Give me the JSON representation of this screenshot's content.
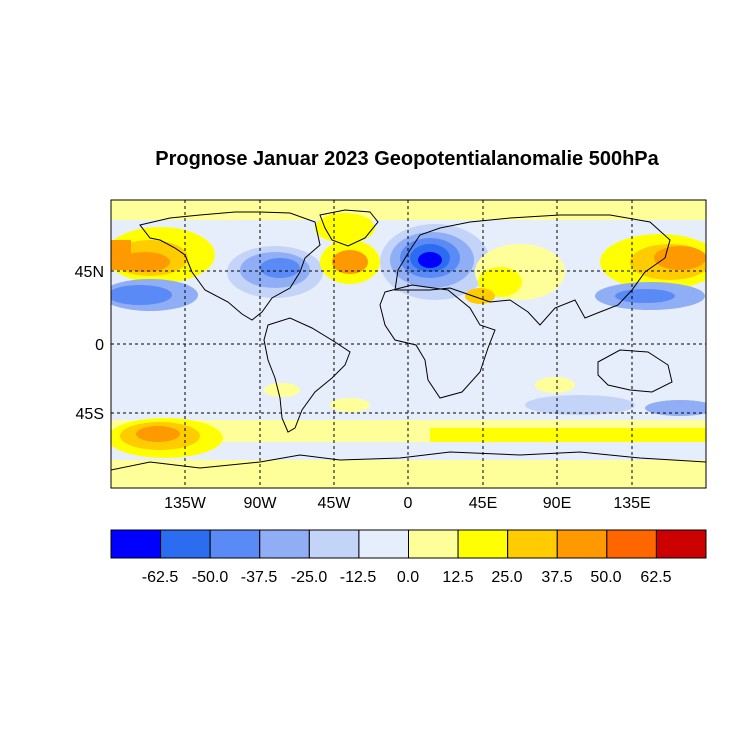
{
  "title": "Prognose Januar 2023 Geopotentialanomalie 500hPa",
  "map": {
    "lat_ticks": [
      "45N",
      "0",
      "45S"
    ],
    "lon_ticks": [
      "135W",
      "90W",
      "45W",
      "0",
      "45E",
      "90E",
      "135E"
    ],
    "grid": "dashed every 45 degrees",
    "domain": {
      "lon": [
        -180,
        180
      ],
      "lat": [
        -85,
        85
      ]
    }
  },
  "legend": {
    "labels": [
      "-62.5",
      "-50.0",
      "-37.5",
      "-25.0",
      "-12.5",
      "0.0",
      "12.5",
      "25.0",
      "37.5",
      "50.0",
      "62.5"
    ],
    "colors": [
      "#0000ff",
      "#2b6cf0",
      "#5a8af5",
      "#8faef5",
      "#c3d4f8",
      "#e6eefc",
      "#ffff99",
      "#ffff00",
      "#ffcc00",
      "#ff9900",
      "#ff6600",
      "#cc0000"
    ]
  },
  "anomaly_regions": [
    {
      "region": "europe",
      "level": -62.5
    },
    {
      "region": "north-america-east",
      "level": -37.5
    },
    {
      "region": "north-pacific-30n",
      "level": -37.5
    },
    {
      "region": "west-pacific-30n",
      "level": -25.0
    },
    {
      "region": "tropics",
      "level": -12.5
    },
    {
      "region": "alaska",
      "level": 37.5
    },
    {
      "region": "north-atlantic",
      "level": 37.5
    },
    {
      "region": "central-asia",
      "level": 25.0
    },
    {
      "region": "east-asia-pacific",
      "level": 37.5
    },
    {
      "region": "southern-ocean-pacific",
      "level": 37.5
    },
    {
      "region": "southern-ocean-ring",
      "level": 25.0
    },
    {
      "region": "antarctica",
      "level": 12.5
    }
  ]
}
